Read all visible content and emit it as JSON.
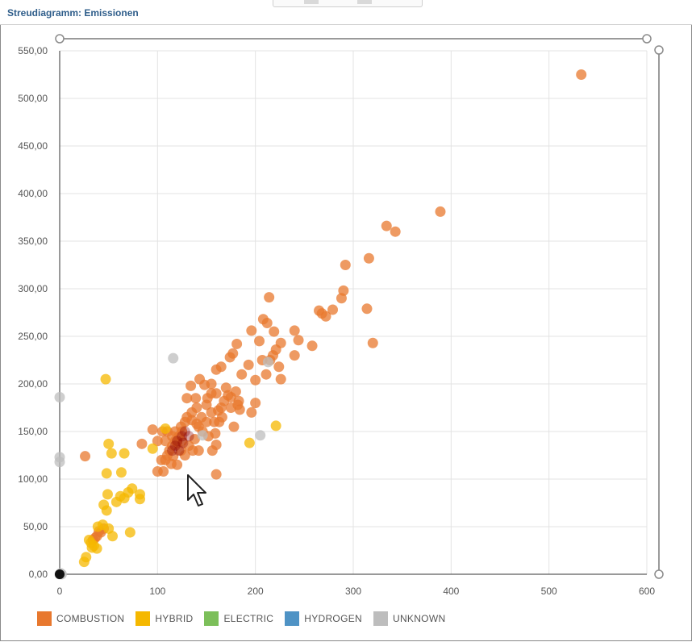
{
  "window": {
    "title": "Streudiagramm: Emissionen"
  },
  "chart_data": {
    "type": "scatter",
    "xlim": [
      0,
      600
    ],
    "ylim": [
      0,
      550
    ],
    "x_ticks": [
      "0",
      "100",
      "200",
      "300",
      "400",
      "500",
      "600"
    ],
    "y_ticks": [
      "0,00",
      "50,00",
      "100,00",
      "150,00",
      "200,00",
      "250,00",
      "300,00",
      "350,00",
      "400,00",
      "450,00",
      "500,00",
      "550,00"
    ],
    "x_tick_values": [
      0,
      100,
      200,
      300,
      400,
      500,
      600
    ],
    "y_tick_values": [
      0,
      50,
      100,
      150,
      200,
      250,
      300,
      350,
      400,
      450,
      500,
      550
    ],
    "grid": true,
    "legend_position": "bottom-left",
    "series": [
      {
        "name": "COMBUSTION",
        "color": "#e8782e",
        "points": [
          [
            533,
            525
          ],
          [
            389,
            381
          ],
          [
            334,
            366
          ],
          [
            343,
            360
          ],
          [
            292,
            325
          ],
          [
            316,
            332
          ],
          [
            290,
            298
          ],
          [
            288,
            290
          ],
          [
            314,
            279
          ],
          [
            320,
            243
          ],
          [
            265,
            277
          ],
          [
            268,
            274
          ],
          [
            272,
            271
          ],
          [
            279,
            278
          ],
          [
            258,
            240
          ],
          [
            244,
            246
          ],
          [
            240,
            256
          ],
          [
            240,
            230
          ],
          [
            214,
            291
          ],
          [
            208,
            268
          ],
          [
            212,
            264
          ],
          [
            219,
            255
          ],
          [
            226,
            243
          ],
          [
            221,
            236
          ],
          [
            224,
            218
          ],
          [
            226,
            205
          ],
          [
            218,
            230
          ],
          [
            215,
            225
          ],
          [
            211,
            210
          ],
          [
            204,
            245
          ],
          [
            207,
            225
          ],
          [
            200,
            204
          ],
          [
            196,
            256
          ],
          [
            193,
            220
          ],
          [
            186,
            210
          ],
          [
            181,
            242
          ],
          [
            177,
            232
          ],
          [
            174,
            228
          ],
          [
            165,
            218
          ],
          [
            160,
            215
          ],
          [
            170,
            196
          ],
          [
            175,
            186
          ],
          [
            183,
            182
          ],
          [
            184,
            173
          ],
          [
            180,
            192
          ],
          [
            175,
            175
          ],
          [
            165,
            175
          ],
          [
            162,
            172
          ],
          [
            178,
            155
          ],
          [
            196,
            170
          ],
          [
            200,
            180
          ],
          [
            182,
            178
          ],
          [
            155,
            200
          ],
          [
            148,
            199
          ],
          [
            143,
            205
          ],
          [
            139,
            185
          ],
          [
            134,
            198
          ],
          [
            130,
            185
          ],
          [
            151,
            185
          ],
          [
            160,
            190
          ],
          [
            155,
            170
          ],
          [
            150,
            160
          ],
          [
            145,
            165
          ],
          [
            140,
            175
          ],
          [
            135,
            170
          ],
          [
            128,
            160
          ],
          [
            125,
            150
          ],
          [
            122,
            145
          ],
          [
            118,
            140
          ],
          [
            115,
            135
          ],
          [
            112,
            130
          ],
          [
            110,
            125
          ],
          [
            108,
            120
          ],
          [
            104,
            120
          ],
          [
            100,
            108
          ],
          [
            106,
            108
          ],
          [
            116,
            124
          ],
          [
            124,
            130
          ],
          [
            132,
            135
          ],
          [
            138,
            142
          ],
          [
            142,
            155
          ],
          [
            146,
            150
          ],
          [
            152,
            145
          ],
          [
            158,
            160
          ],
          [
            160,
            136
          ],
          [
            160,
            105
          ],
          [
            159,
            148
          ],
          [
            156,
            130
          ],
          [
            142,
            130
          ],
          [
            136,
            130
          ],
          [
            128,
            125
          ],
          [
            120,
            115
          ],
          [
            114,
            116
          ],
          [
            118,
            150
          ],
          [
            124,
            155
          ],
          [
            130,
            165
          ],
          [
            135,
            162
          ],
          [
            140,
            158
          ],
          [
            125,
            140
          ],
          [
            120,
            138
          ],
          [
            115,
            145
          ],
          [
            110,
            150
          ],
          [
            108,
            140
          ],
          [
            105,
            150
          ],
          [
            100,
            140
          ],
          [
            95,
            152
          ],
          [
            84,
            137
          ],
          [
            26,
            124
          ],
          [
            40,
            45
          ],
          [
            38,
            40
          ],
          [
            45,
            48
          ],
          [
            42,
            44
          ],
          [
            36,
            38
          ],
          [
            34,
            36
          ],
          [
            150,
            178
          ],
          [
            155,
            190
          ],
          [
            168,
            182
          ],
          [
            172,
            188
          ],
          [
            163,
            160
          ],
          [
            166,
            165
          ]
        ]
      },
      {
        "name": "HYBRID",
        "color": "#f5b800",
        "points": [
          [
            47,
            205
          ],
          [
            221,
            156
          ],
          [
            194,
            138
          ],
          [
            50,
            137
          ],
          [
            53,
            127
          ],
          [
            66,
            127
          ],
          [
            95,
            132
          ],
          [
            108,
            153
          ],
          [
            63,
            107
          ],
          [
            48,
            106
          ],
          [
            45,
            73
          ],
          [
            49,
            84
          ],
          [
            48,
            67
          ],
          [
            74,
            90
          ],
          [
            82,
            84
          ],
          [
            82,
            79
          ],
          [
            62,
            82
          ],
          [
            66,
            80
          ],
          [
            58,
            76
          ],
          [
            70,
            86
          ],
          [
            44,
            52
          ],
          [
            50,
            48
          ],
          [
            39,
            50
          ],
          [
            54,
            40
          ],
          [
            72,
            44
          ],
          [
            30,
            36
          ],
          [
            32,
            33
          ],
          [
            35,
            30
          ],
          [
            33,
            28
          ],
          [
            38,
            27
          ],
          [
            27,
            18
          ],
          [
            25,
            13
          ]
        ]
      },
      {
        "name": "ELECTRIC",
        "color": "#7cbf5a",
        "points": []
      },
      {
        "name": "HYDROGEN",
        "color": "#4f93c5",
        "points": []
      },
      {
        "name": "UNKNOWN",
        "color": "#bdbdbd",
        "points": [
          [
            0,
            186
          ],
          [
            0,
            123
          ],
          [
            0,
            118
          ],
          [
            116,
            227
          ],
          [
            213,
            223
          ],
          [
            205,
            146
          ],
          [
            146,
            146
          ],
          [
            0,
            0
          ],
          [
            2,
            0
          ],
          [
            1,
            1
          ]
        ]
      }
    ]
  },
  "legend": {
    "items": [
      {
        "label": "COMBUSTION",
        "color": "#e8782e"
      },
      {
        "label": "HYBRID",
        "color": "#f5b800"
      },
      {
        "label": "ELECTRIC",
        "color": "#7cbf5a"
      },
      {
        "label": "HYDROGEN",
        "color": "#4f93c5"
      },
      {
        "label": "UNKNOWN",
        "color": "#bdbdbd"
      }
    ]
  }
}
